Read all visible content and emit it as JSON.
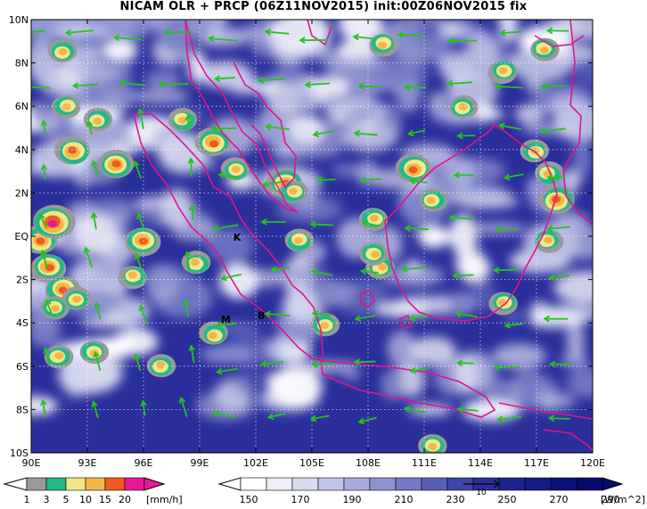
{
  "title": "NICAM OLR + PRCP (06Z11NOV2015) init:00Z06NOV2015 fix",
  "map": {
    "lon_range": [
      90,
      120
    ],
    "lat_range": [
      -10,
      10
    ],
    "lat_ticks": [
      "10N",
      "8N",
      "6N",
      "4N",
      "2N",
      "EQ",
      "2S",
      "4S",
      "6S",
      "8S",
      "10S"
    ],
    "lon_ticks": [
      "90E",
      "93E",
      "96E",
      "99E",
      "102E",
      "105E",
      "108E",
      "111E",
      "114E",
      "117E",
      "120E"
    ],
    "markers": [
      {
        "label": "K",
        "lon": 101.0,
        "lat": -0.2
      },
      {
        "label": "M",
        "lon": 100.4,
        "lat": -4.0
      },
      {
        "label": "B",
        "lon": 102.3,
        "lat": -3.8
      }
    ],
    "coast_color": "#e0148c",
    "vector_color": "#22c41e",
    "olr_background": "#2a2f9c",
    "vector_ref_label": "10"
  },
  "prcp_colorbar": {
    "labels": [
      "1",
      "3",
      "5",
      "10",
      "15",
      "20"
    ],
    "unit": "[mm/h]",
    "colors": [
      "#999999",
      "#22b88a",
      "#f2e688",
      "#f4b54a",
      "#ee5a1f",
      "#e8179a"
    ]
  },
  "olr_colorbar": {
    "labels": [
      "150",
      "170",
      "190",
      "210",
      "230",
      "250",
      "270",
      "290"
    ],
    "unit": "[W/m^2]",
    "colors": [
      "#ffffff",
      "#eeeef8",
      "#d9dbef",
      "#c1c4e5",
      "#a8acdb",
      "#8e93d0",
      "#7379c4",
      "#585fb7",
      "#3e45a8",
      "#2a2f9c",
      "#1d2391",
      "#141a86",
      "#0c127a",
      "#060b6e"
    ]
  }
}
